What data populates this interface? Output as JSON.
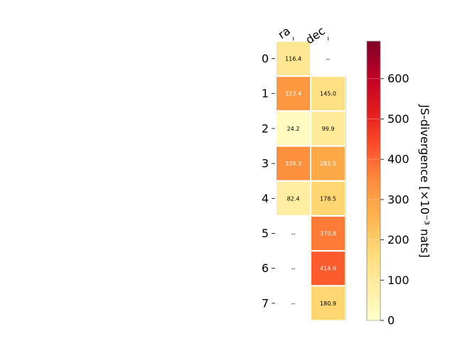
{
  "chart_data": {
    "type": "heatmap",
    "columns": [
      "ra",
      "dec"
    ],
    "rows": [
      "0",
      "1",
      "2",
      "3",
      "4",
      "5",
      "6",
      "7"
    ],
    "values": [
      [
        116.4,
        null
      ],
      [
        323.4,
        145.0
      ],
      [
        24.2,
        99.9
      ],
      [
        339.3,
        281.5
      ],
      [
        82.4,
        178.5
      ],
      [
        null,
        370.8
      ],
      [
        null,
        414.9
      ],
      [
        null,
        180.9
      ]
    ],
    "labels": [
      [
        "116.4",
        "--"
      ],
      [
        "323.4",
        "145.0"
      ],
      [
        "24.2",
        "99.9"
      ],
      [
        "339.3",
        "281.5"
      ],
      [
        "82.4",
        "178.5"
      ],
      [
        "--",
        "370.8"
      ],
      [
        "--",
        "414.9"
      ],
      [
        "--",
        "180.9"
      ]
    ],
    "colorbar": {
      "label": "JS-divergence [×10⁻³ nats]",
      "range": [
        0,
        693
      ],
      "ticks": [
        0,
        100,
        200,
        300,
        400,
        500,
        600
      ],
      "tick_labels": [
        "0",
        "100",
        "200",
        "300",
        "400",
        "500",
        "600"
      ],
      "colormap": "YlOrRd"
    }
  }
}
